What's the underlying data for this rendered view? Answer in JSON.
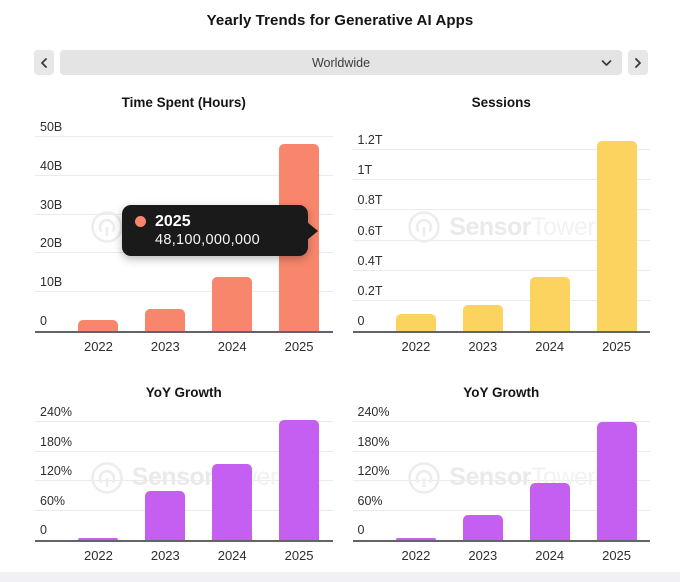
{
  "page": {
    "title": "Yearly Trends for Generative AI Apps"
  },
  "selector": {
    "value": "Worldwide"
  },
  "watermark": {
    "brand_primary": "Sensor",
    "brand_secondary": "Tower"
  },
  "colors": {
    "time_spent_bar": "#F8866C",
    "sessions_bar": "#FBD35E",
    "yoy_growth_bar": "#C55FF2",
    "tooltip_bg": "#1A1A1A",
    "axis": "#63646A",
    "gridline": "#EBEBEB"
  },
  "chart_data": [
    {
      "type": "bar",
      "title": "Time Spent (Hours)",
      "categories": [
        "2022",
        "2023",
        "2024",
        "2025"
      ],
      "values": [
        2.8,
        5.6,
        14,
        48.1
      ],
      "unit": "billions of hours",
      "ylim": [
        0,
        50
      ],
      "grid": true,
      "legend": "none",
      "yticks": [
        {
          "label": "50B",
          "value": 50
        },
        {
          "label": "40B",
          "value": 40
        },
        {
          "label": "30B",
          "value": 30
        },
        {
          "label": "20B",
          "value": 20
        },
        {
          "label": "10B",
          "value": 10
        },
        {
          "label": "0",
          "value": 0
        }
      ],
      "bar_color": "#F8866C",
      "tooltip": {
        "category": "2025",
        "value": "48,100,000,000"
      }
    },
    {
      "type": "bar",
      "title": "Sessions",
      "categories": [
        "2022",
        "2023",
        "2024",
        "2025"
      ],
      "values": [
        0.11,
        0.17,
        0.36,
        1.26
      ],
      "unit": "trillions of sessions",
      "ylim": [
        0,
        1.2
      ],
      "grid": true,
      "legend": "none",
      "yticks": [
        {
          "label": "1.2T",
          "value": 1.2
        },
        {
          "label": "1T",
          "value": 1.0
        },
        {
          "label": "0.8T",
          "value": 0.8
        },
        {
          "label": "0.6T",
          "value": 0.6
        },
        {
          "label": "0.4T",
          "value": 0.4
        },
        {
          "label": "0.2T",
          "value": 0.2
        },
        {
          "label": "0",
          "value": 0
        }
      ],
      "bar_color": "#FBD35E"
    },
    {
      "type": "bar",
      "title": "YoY Growth",
      "categories": [
        "2022",
        "2023",
        "2024",
        "2025"
      ],
      "values": [
        2,
        100,
        155,
        245
      ],
      "unit": "percent",
      "ylim": [
        0,
        240
      ],
      "grid": true,
      "legend": "none",
      "yticks": [
        {
          "label": "240%",
          "value": 240
        },
        {
          "label": "180%",
          "value": 180
        },
        {
          "label": "120%",
          "value": 120
        },
        {
          "label": "60%",
          "value": 60
        },
        {
          "label": "0",
          "value": 0
        }
      ],
      "bar_color": "#C55FF2"
    },
    {
      "type": "bar",
      "title": "YoY Growth",
      "categories": [
        "2022",
        "2023",
        "2024",
        "2025"
      ],
      "values": [
        2,
        50,
        115,
        240
      ],
      "unit": "percent",
      "ylim": [
        0,
        240
      ],
      "grid": true,
      "legend": "none",
      "yticks": [
        {
          "label": "240%",
          "value": 240
        },
        {
          "label": "180%",
          "value": 180
        },
        {
          "label": "120%",
          "value": 120
        },
        {
          "label": "60%",
          "value": 60
        },
        {
          "label": "0",
          "value": 0
        }
      ],
      "bar_color": "#C55FF2"
    }
  ]
}
